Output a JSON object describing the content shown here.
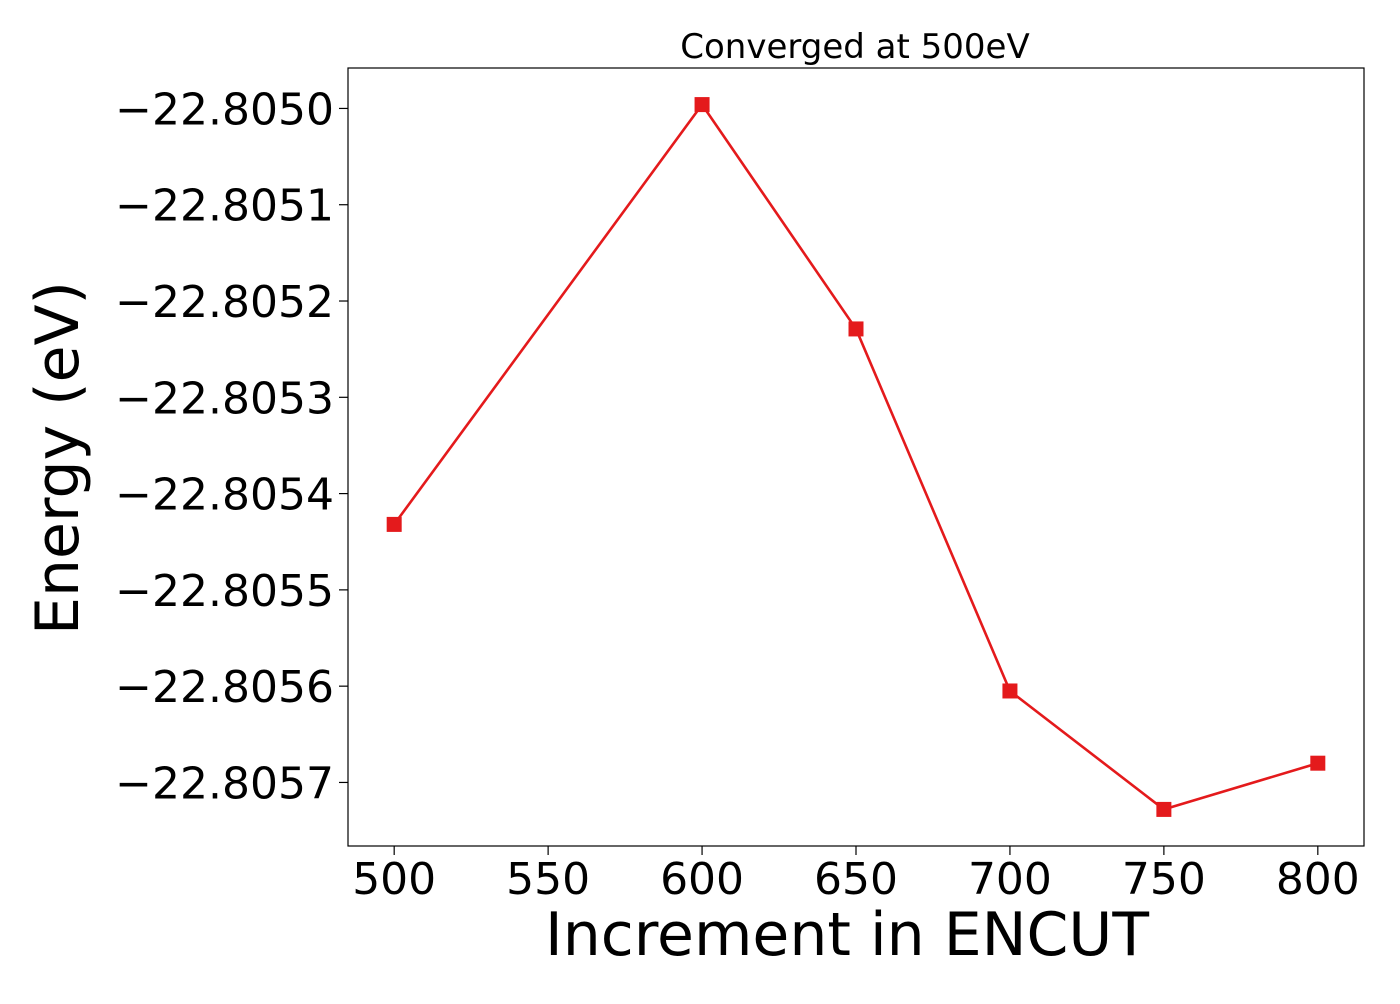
{
  "chart_data": {
    "type": "line",
    "title": "Converged at 500eV",
    "xlabel": "Increment in ENCUT",
    "ylabel": "Energy (eV)",
    "x": [
      500,
      600,
      650,
      700,
      750,
      800
    ],
    "series": [
      {
        "values": [
          -22.805432,
          -22.804996,
          -22.805229,
          -22.805605,
          -22.805728,
          -22.80568
        ],
        "color": "#e41a1c",
        "marker": "square"
      }
    ],
    "xticks": [
      500,
      550,
      600,
      650,
      700,
      750,
      800
    ],
    "xtick_labels": [
      "500",
      "550",
      "600",
      "650",
      "700",
      "750",
      "800"
    ],
    "yticks": [
      -22.805,
      -22.8051,
      -22.8052,
      -22.8053,
      -22.8054,
      -22.8055,
      -22.8056,
      -22.8057
    ],
    "ytick_labels": [
      "−22.8050",
      "−22.8051",
      "−22.8052",
      "−22.8053",
      "−22.8054",
      "−22.8055",
      "−22.8056",
      "−22.8057"
    ],
    "xlim": [
      485,
      815
    ],
    "ylim": [
      -22.805766,
      -22.804958
    ],
    "grid": false,
    "legend": false
  }
}
